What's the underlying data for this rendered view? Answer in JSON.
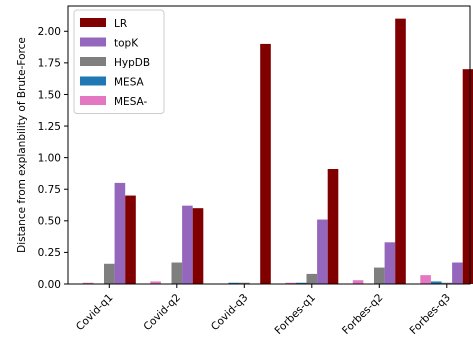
{
  "chart_data": {
    "type": "bar",
    "title": "",
    "xlabel": "",
    "ylabel": "Distance from explanbility of Brute-Force",
    "ylim": [
      0,
      2.2
    ],
    "yticks": [
      "0.00",
      "0.25",
      "0.50",
      "0.75",
      "1.00",
      "1.25",
      "1.50",
      "1.75",
      "2.00"
    ],
    "categories": [
      "Covid-q1",
      "Covid-q2",
      "Covid-q3",
      "Forbes-q1",
      "Forbes-q2",
      "Forbes-q3"
    ],
    "legend_position": "top-left",
    "grid": false,
    "series": [
      {
        "name": "MESA-",
        "color": "#e377c2",
        "values": [
          0.01,
          0.02,
          0.0,
          0.01,
          0.03,
          0.07
        ]
      },
      {
        "name": "MESA",
        "color": "#1f77b4",
        "values": [
          0.0,
          0.0,
          0.01,
          0.01,
          0.0,
          0.02
        ]
      },
      {
        "name": "HypDB",
        "color": "#7f7f7f",
        "values": [
          0.16,
          0.17,
          0.01,
          0.08,
          0.13,
          0.01
        ]
      },
      {
        "name": "topK",
        "color": "#9467bd",
        "values": [
          0.8,
          0.62,
          0.0,
          0.51,
          0.33,
          0.17
        ]
      },
      {
        "name": "LR",
        "color": "#800000",
        "values": [
          0.7,
          0.6,
          1.9,
          0.91,
          2.1,
          1.7
        ]
      }
    ],
    "legend_order": [
      "LR",
      "topK",
      "HypDB",
      "MESA",
      "MESA-"
    ]
  }
}
